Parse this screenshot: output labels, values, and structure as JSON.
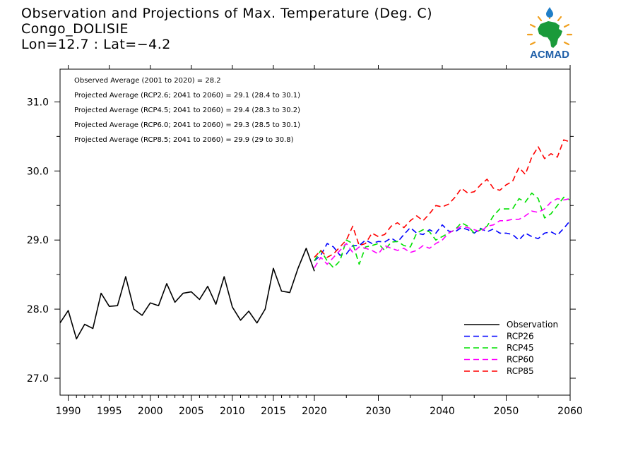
{
  "header": {
    "title": "Observation and Projections of Max. Temperature (Deg. C)",
    "location": "Congo_DOLISIE",
    "coords": "Lon=12.7 : Lat=−4.2"
  },
  "logo": {
    "text": "ACMAD",
    "icon": "africa-map-icon",
    "color": "#1f5fa8"
  },
  "chart_data": {
    "type": "line",
    "title": "Observation and Projections of Max. Temperature (Deg. C)",
    "xlabel": "",
    "ylabel": "",
    "xlim": [
      1989,
      2060
    ],
    "ylim": [
      26.75,
      31.45
    ],
    "x_ticks": [
      1990,
      1995,
      2000,
      2005,
      2010,
      2015,
      2020,
      2030,
      2040,
      2050,
      2060
    ],
    "y_ticks": [
      27.0,
      28.0,
      29.0,
      30.0,
      31.0
    ],
    "y_tick_labels": [
      "27.0",
      "28.0",
      "29.0",
      "30.0",
      "31.0"
    ],
    "grid": false,
    "legend_placement": "bottom-right",
    "annotations": [
      "Observed Average (2001 to 2020) = 28.2",
      "Projected Average (RCP2.6; 2041 to 2060) = 29.1 (28.4 to 30.1)",
      "Projected Average (RCP4.5; 2041 to 2060) = 29.4 (28.3 to 30.2)",
      "Projected Average (RCP6.0; 2041 to 2060) = 29.3 (28.5 to 30.1)",
      "Projected Average (RCP8.5; 2041 to 2060) = 29.9 (29 to 30.8)"
    ],
    "series": [
      {
        "name": "Observation",
        "color": "#000000",
        "dashed": false,
        "x": [
          1989,
          1990,
          1991,
          1992,
          1993,
          1994,
          1995,
          1996,
          1997,
          1998,
          1999,
          2000,
          2001,
          2002,
          2003,
          2004,
          2005,
          2006,
          2007,
          2008,
          2009,
          2010,
          2011,
          2012,
          2013,
          2014,
          2015,
          2016,
          2017,
          2018,
          2019,
          2020
        ],
        "y": [
          27.8,
          27.98,
          27.57,
          27.78,
          27.72,
          28.23,
          28.04,
          28.05,
          28.47,
          28.0,
          27.91,
          28.09,
          28.05,
          28.37,
          28.1,
          28.23,
          28.25,
          28.14,
          28.33,
          28.07,
          28.47,
          28.03,
          27.84,
          27.97,
          27.8,
          28.0,
          28.59,
          28.26,
          28.24,
          28.59,
          28.88,
          28.55
        ]
      },
      {
        "name": "RCP26",
        "color": "#0000ff",
        "dashed": true,
        "x": [
          2020,
          2021,
          2022,
          2023,
          2024,
          2025,
          2026,
          2027,
          2028,
          2029,
          2030,
          2031,
          2032,
          2033,
          2034,
          2035,
          2036,
          2037,
          2038,
          2039,
          2040,
          2041,
          2042,
          2043,
          2044,
          2045,
          2046,
          2047,
          2048,
          2049,
          2050,
          2051,
          2052,
          2053,
          2054,
          2055,
          2056,
          2057,
          2058,
          2059,
          2060
        ],
        "y": [
          28.7,
          28.78,
          28.95,
          28.9,
          28.78,
          28.8,
          28.92,
          28.92,
          29.0,
          28.95,
          28.98,
          28.97,
          29.03,
          28.97,
          29.08,
          29.18,
          29.1,
          29.08,
          29.15,
          29.1,
          29.22,
          29.13,
          29.12,
          29.18,
          29.15,
          29.1,
          29.17,
          29.12,
          29.16,
          29.1,
          29.1,
          29.08,
          29.0,
          29.1,
          29.05,
          29.02,
          29.1,
          29.12,
          29.07,
          29.17,
          29.28
        ]
      },
      {
        "name": "RCP45",
        "color": "#00e000",
        "dashed": true,
        "x": [
          2020,
          2021,
          2022,
          2023,
          2024,
          2025,
          2026,
          2027,
          2028,
          2029,
          2030,
          2031,
          2032,
          2033,
          2034,
          2035,
          2036,
          2037,
          2038,
          2039,
          2040,
          2041,
          2042,
          2043,
          2044,
          2045,
          2046,
          2047,
          2048,
          2049,
          2050,
          2051,
          2052,
          2053,
          2054,
          2055,
          2056,
          2057,
          2058,
          2059,
          2060
        ],
        "y": [
          28.7,
          28.85,
          28.7,
          28.6,
          28.7,
          29.0,
          28.95,
          28.65,
          28.9,
          28.92,
          28.95,
          28.85,
          28.97,
          28.98,
          28.92,
          28.9,
          29.1,
          29.15,
          29.12,
          29.0,
          29.05,
          29.1,
          29.15,
          29.25,
          29.2,
          29.1,
          29.15,
          29.2,
          29.35,
          29.45,
          29.45,
          29.45,
          29.6,
          29.55,
          29.68,
          29.6,
          29.32,
          29.38,
          29.5,
          29.62,
          29.58
        ]
      },
      {
        "name": "RCP60",
        "color": "#ff00ff",
        "dashed": true,
        "x": [
          2020,
          2021,
          2022,
          2023,
          2024,
          2025,
          2026,
          2027,
          2028,
          2029,
          2030,
          2031,
          2032,
          2033,
          2034,
          2035,
          2036,
          2037,
          2038,
          2039,
          2040,
          2041,
          2042,
          2043,
          2044,
          2045,
          2046,
          2047,
          2048,
          2049,
          2050,
          2051,
          2052,
          2053,
          2054,
          2055,
          2056,
          2057,
          2058,
          2059,
          2060
        ],
        "y": [
          28.6,
          28.75,
          28.65,
          28.75,
          28.85,
          28.95,
          28.82,
          28.9,
          28.88,
          28.85,
          28.8,
          28.92,
          28.88,
          28.85,
          28.88,
          28.82,
          28.85,
          28.92,
          28.88,
          28.95,
          29.0,
          29.1,
          29.15,
          29.2,
          29.18,
          29.15,
          29.12,
          29.2,
          29.22,
          29.28,
          29.28,
          29.3,
          29.3,
          29.35,
          29.42,
          29.4,
          29.45,
          29.55,
          29.6,
          29.58,
          29.6
        ]
      },
      {
        "name": "RCP85",
        "color": "#ff0000",
        "dashed": true,
        "x": [
          2020,
          2021,
          2022,
          2023,
          2024,
          2025,
          2026,
          2027,
          2028,
          2029,
          2030,
          2031,
          2032,
          2033,
          2034,
          2035,
          2036,
          2037,
          2038,
          2039,
          2040,
          2041,
          2042,
          2043,
          2044,
          2045,
          2046,
          2047,
          2048,
          2049,
          2050,
          2051,
          2052,
          2053,
          2054,
          2055,
          2056,
          2057,
          2058,
          2059,
          2060
        ],
        "y": [
          28.75,
          28.85,
          28.75,
          28.8,
          28.9,
          29.0,
          29.2,
          28.92,
          28.95,
          29.1,
          29.05,
          29.08,
          29.2,
          29.25,
          29.18,
          29.28,
          29.35,
          29.28,
          29.38,
          29.5,
          29.48,
          29.52,
          29.62,
          29.75,
          29.68,
          29.7,
          29.8,
          29.88,
          29.75,
          29.72,
          29.8,
          29.85,
          30.05,
          29.95,
          30.2,
          30.35,
          30.18,
          30.25,
          30.2,
          30.45,
          30.42
        ]
      }
    ]
  }
}
